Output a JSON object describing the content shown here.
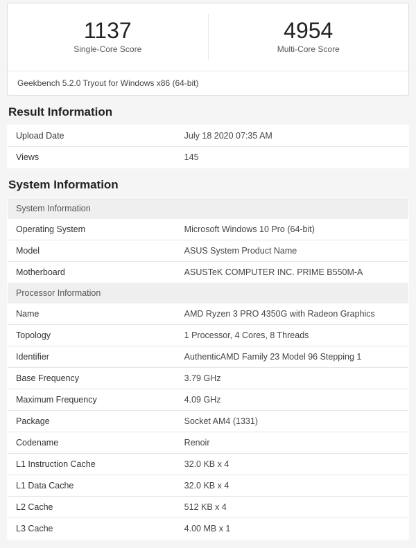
{
  "scores": {
    "single": {
      "value": "1137",
      "label": "Single-Core Score"
    },
    "multi": {
      "value": "4954",
      "label": "Multi-Core Score"
    },
    "footer": "Geekbench 5.2.0 Tryout for Windows x86 (64-bit)"
  },
  "result_info": {
    "title": "Result Information",
    "rows": [
      {
        "key": "Upload Date",
        "val": "July 18 2020 07:35 AM"
      },
      {
        "key": "Views",
        "val": "145"
      }
    ]
  },
  "system_info": {
    "title": "System Information",
    "group1_header": "System Information",
    "group1_rows": [
      {
        "key": "Operating System",
        "val": "Microsoft Windows 10 Pro (64-bit)"
      },
      {
        "key": "Model",
        "val": "ASUS System Product Name"
      },
      {
        "key": "Motherboard",
        "val": "ASUSTeK COMPUTER INC. PRIME B550M-A"
      }
    ],
    "group2_header": "Processor Information",
    "group2_rows": [
      {
        "key": "Name",
        "val": "AMD Ryzen 3 PRO 4350G with Radeon Graphics"
      },
      {
        "key": "Topology",
        "val": "1 Processor, 4 Cores, 8 Threads"
      },
      {
        "key": "Identifier",
        "val": "AuthenticAMD Family 23 Model 96 Stepping 1"
      },
      {
        "key": "Base Frequency",
        "val": "3.79 GHz"
      },
      {
        "key": "Maximum Frequency",
        "val": "4.09 GHz"
      },
      {
        "key": "Package",
        "val": "Socket AM4 (1331)"
      },
      {
        "key": "Codename",
        "val": "Renoir"
      },
      {
        "key": "L1 Instruction Cache",
        "val": "32.0 KB x 4"
      },
      {
        "key": "L1 Data Cache",
        "val": "32.0 KB x 4"
      },
      {
        "key": "L2 Cache",
        "val": "512 KB x 4"
      },
      {
        "key": "L3 Cache",
        "val": "4.00 MB x 1"
      }
    ]
  }
}
